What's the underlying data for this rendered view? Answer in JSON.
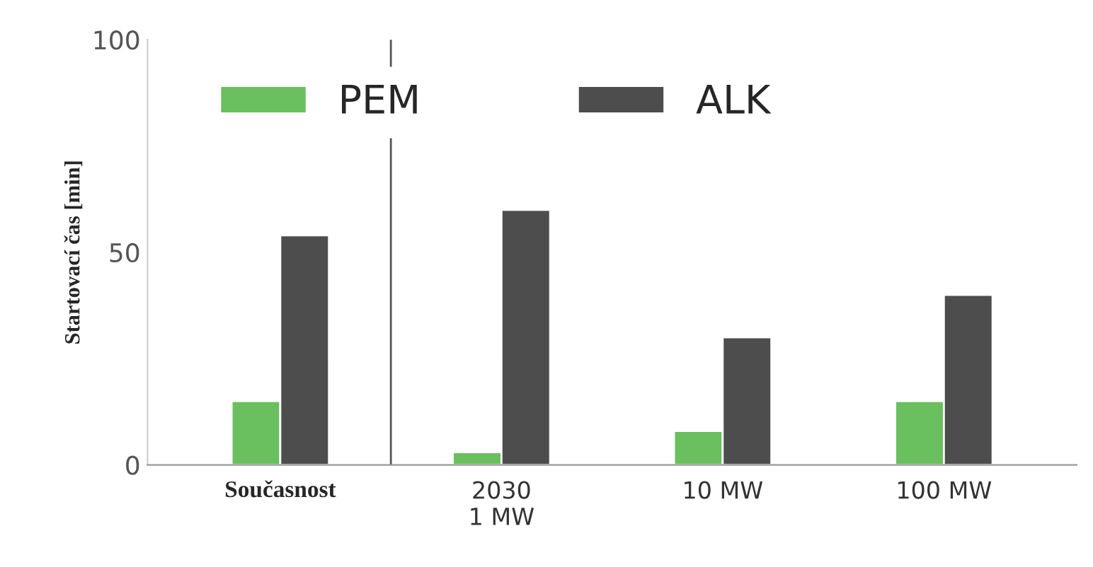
{
  "chart_data": {
    "type": "bar",
    "ylabel": "Startovací čas [min]",
    "categories": [
      "Současnost",
      "2030\n1 MW",
      "10 MW",
      "100 MW"
    ],
    "series": [
      {
        "name": "PEM",
        "color": "#6abf5e",
        "values": [
          15,
          3,
          8,
          15
        ]
      },
      {
        "name": "ALK",
        "color": "#4d4d4d",
        "values": [
          54,
          60,
          30,
          40
        ]
      }
    ],
    "ylim": [
      0,
      100
    ],
    "yticks": [
      0,
      50,
      100
    ],
    "grid": false,
    "legend": "top left"
  }
}
